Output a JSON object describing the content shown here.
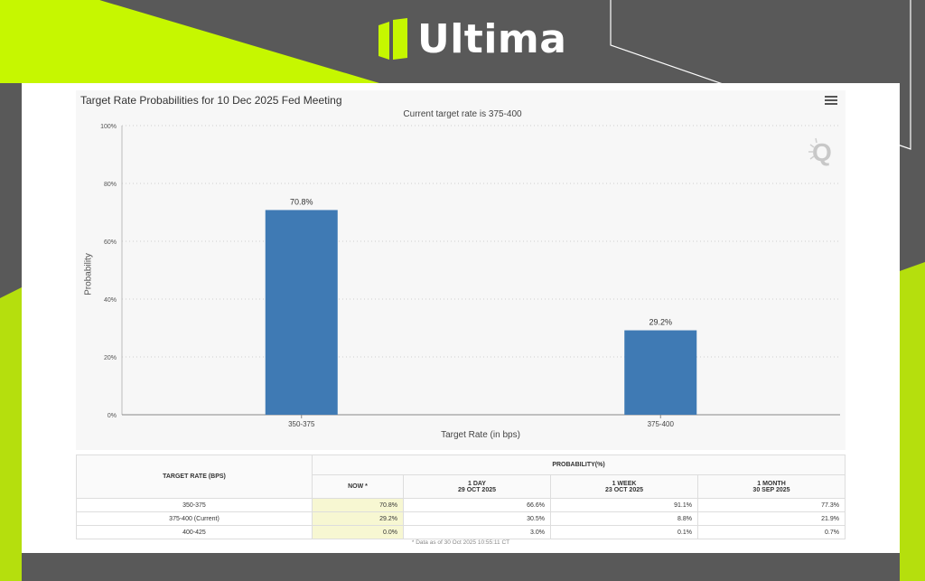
{
  "brand": {
    "name": "Ultima",
    "accent": "#c6f700"
  },
  "chart_data": {
    "type": "bar",
    "title": "Target Rate Probabilities for 10 Dec 2025 Fed Meeting",
    "subtitle": "Current target rate is 375-400",
    "categories": [
      "350-375",
      "375-400"
    ],
    "values": [
      70.8,
      29.2
    ],
    "data_labels": [
      "70.8%",
      "29.2%"
    ],
    "xlabel": "Target Rate (in bps)",
    "ylabel": "Probability",
    "ylim": [
      0,
      100
    ],
    "yticks": [
      0,
      20,
      40,
      60,
      80,
      100
    ],
    "ytick_labels": [
      "0%",
      "20%",
      "40%",
      "60%",
      "80%",
      "100%"
    ],
    "bar_color": "#3f7ab4",
    "grid": true
  },
  "table": {
    "col_rate": "TARGET RATE (BPS)",
    "col_prob": "PROBABILITY(%)",
    "cols": [
      {
        "label": "NOW *",
        "date": ""
      },
      {
        "label": "1 DAY",
        "date": "29 OCT 2025"
      },
      {
        "label": "1 WEEK",
        "date": "23 OCT 2025"
      },
      {
        "label": "1 MONTH",
        "date": "30 SEP 2025"
      }
    ],
    "rows": [
      {
        "rate": "350-375",
        "vals": [
          "70.8%",
          "66.6%",
          "91.1%",
          "77.3%"
        ]
      },
      {
        "rate": "375-400 (Current)",
        "vals": [
          "29.2%",
          "30.5%",
          "8.8%",
          "21.9%"
        ]
      },
      {
        "rate": "400-425",
        "vals": [
          "0.0%",
          "3.0%",
          "0.1%",
          "0.7%"
        ]
      }
    ],
    "footnote": "* Data as of 30 Oct 2025 10:55:11 CT"
  }
}
